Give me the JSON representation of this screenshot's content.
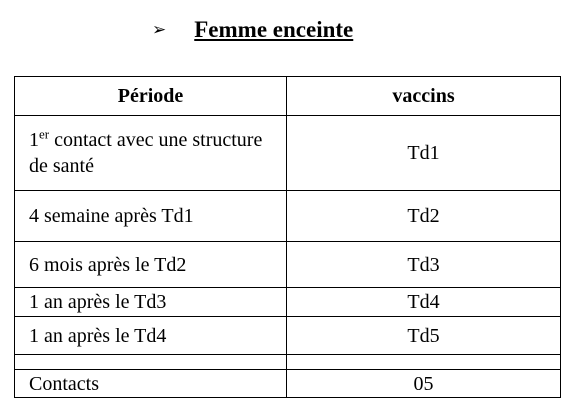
{
  "heading": {
    "bullet": "➢",
    "title": "Femme enceinte"
  },
  "table": {
    "headers": [
      "Période",
      "vaccins"
    ],
    "first_row": {
      "period_prefix": "1",
      "period_sup": "er",
      "period_suffix": " contact avec une structure de santé",
      "vaccine": "Td1"
    },
    "rows": [
      {
        "period": "4 semaine après Td1",
        "vaccine": "Td2"
      },
      {
        "period": "6 mois après le Td2",
        "vaccine": "Td3"
      },
      {
        "period": "1 an après le Td3",
        "vaccine": "Td4"
      },
      {
        "period": "1 an après le Td4",
        "vaccine": "Td5"
      },
      {
        "period": "",
        "vaccine": ""
      },
      {
        "period": "Contacts",
        "vaccine": "05"
      }
    ]
  }
}
